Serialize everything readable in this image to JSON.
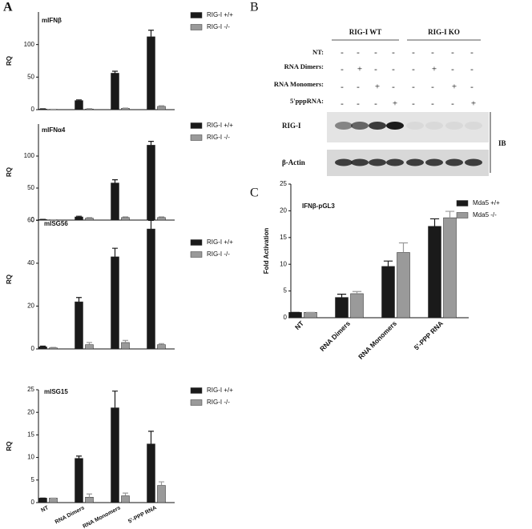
{
  "panel_labels": [
    "A",
    "B",
    "C"
  ],
  "blot": {
    "groups": [
      "RIG-I WT",
      "RIG-I KO"
    ],
    "conditions": [
      {
        "label": "NT:",
        "signs": [
          "-",
          "-",
          "-",
          "-",
          "-",
          "-",
          "-",
          "-"
        ]
      },
      {
        "label": "RNA Dimers:",
        "signs": [
          "-",
          "+",
          "-",
          "-",
          "-",
          "+",
          "-",
          "-"
        ]
      },
      {
        "label": "RNA Monomers:",
        "signs": [
          "-",
          "-",
          "+",
          "-",
          "-",
          "-",
          "+",
          "-"
        ]
      },
      {
        "label": "5'pppRNA:",
        "signs": [
          "-",
          "-",
          "-",
          "+",
          "-",
          "-",
          "-",
          "+"
        ]
      }
    ],
    "rows": [
      "RIG-I",
      "β-Actin"
    ],
    "ib": "IB"
  },
  "chart_data": [
    {
      "type": "bar",
      "title": "mIFNβ",
      "ylabel": "RQ",
      "categories": [
        null,
        null,
        null,
        null
      ],
      "series": [
        {
          "name": "RIG-I +/+",
          "color": "#1a1a1a",
          "values": [
            1,
            14,
            56,
            112
          ],
          "errors": [
            0.3,
            1,
            3,
            10
          ]
        },
        {
          "name": "RIG-I -/-",
          "color": "#9a9a9a",
          "values": [
            0.5,
            1,
            2,
            5
          ],
          "errors": [
            0.2,
            0.5,
            0.5,
            1
          ]
        }
      ],
      "ylim": [
        0,
        150
      ],
      "yticks": [
        0,
        50,
        100
      ]
    },
    {
      "type": "bar",
      "title": "mIFNα4",
      "ylabel": "RQ",
      "categories": [
        null,
        null,
        null,
        null
      ],
      "series": [
        {
          "name": "RIG-I +/+",
          "color": "#1a1a1a",
          "values": [
            1,
            5,
            58,
            117
          ],
          "errors": [
            0.2,
            1,
            5,
            6
          ]
        },
        {
          "name": "RIG-I -/-",
          "color": "#9a9a9a",
          "values": [
            0.5,
            3,
            4,
            4
          ],
          "errors": [
            0.2,
            1,
            1,
            1
          ]
        }
      ],
      "ylim": [
        0,
        150
      ],
      "yticks": [
        0,
        50,
        100
      ]
    },
    {
      "type": "bar",
      "title": "mISG56",
      "ylabel": "RQ",
      "categories": [
        null,
        null,
        null,
        null
      ],
      "series": [
        {
          "name": "RIG-I +/+",
          "color": "#1a1a1a",
          "values": [
            1,
            22,
            43,
            56
          ],
          "errors": [
            0.3,
            2,
            4,
            4
          ]
        },
        {
          "name": "RIG-I -/-",
          "color": "#9a9a9a",
          "values": [
            0.5,
            2,
            3,
            2
          ],
          "errors": [
            0.2,
            1,
            1,
            0.5
          ]
        }
      ],
      "ylim": [
        0,
        65
      ],
      "yticks": [
        0,
        20,
        40,
        60
      ]
    },
    {
      "type": "bar",
      "title": "mISG15",
      "ylabel": "RQ",
      "categories": [
        "NT",
        "RNA Dimers",
        "RNA Monomers",
        "5'-PPP RNA"
      ],
      "series": [
        {
          "name": "RIG-I +/+",
          "color": "#1a1a1a",
          "values": [
            1,
            9.8,
            21,
            13
          ],
          "errors": [
            0,
            0.5,
            3.7,
            2.8
          ]
        },
        {
          "name": "RIG-I -/-",
          "color": "#9a9a9a",
          "values": [
            1,
            1.2,
            1.5,
            3.8
          ],
          "errors": [
            0,
            0.7,
            0.6,
            0.8
          ]
        }
      ],
      "ylim": [
        0,
        25
      ],
      "yticks": [
        0,
        5,
        10,
        15,
        20,
        25
      ]
    },
    {
      "type": "bar",
      "title": "IFNβ-pGL3",
      "ylabel": "Fold Activation",
      "categories": [
        "NT",
        "RNA Dimers",
        "RNA Monomers",
        "5'-PPP RNA"
      ],
      "series": [
        {
          "name": "Mda5 +/+",
          "color": "#1a1a1a",
          "values": [
            1,
            3.8,
            9.6,
            17.1
          ],
          "errors": [
            0,
            0.6,
            1,
            1.4
          ]
        },
        {
          "name": "Mda5 -/-",
          "color": "#9a9a9a",
          "values": [
            1,
            4.5,
            12.2,
            18.7
          ],
          "errors": [
            0,
            0.4,
            1.8,
            1.2
          ]
        }
      ],
      "ylim": [
        0,
        25
      ],
      "yticks": [
        0,
        5,
        10,
        15,
        20,
        25
      ]
    }
  ]
}
